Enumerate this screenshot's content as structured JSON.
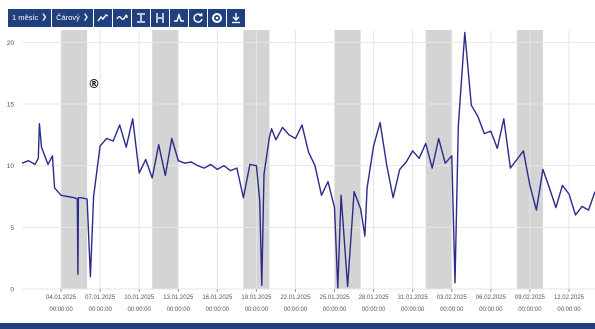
{
  "toolbar": {
    "range_label": "1 měsíc",
    "type_label": "Čárový",
    "icons": [
      "trend-line-icon",
      "wave-icon",
      "align-icon",
      "spread-icon",
      "peak-icon",
      "refresh-icon",
      "settings-icon",
      "download-icon"
    ]
  },
  "colors": {
    "toolbar_bg": "#1f3f7d",
    "series": "#2b2b8c",
    "band": "#d4d4d4",
    "grid": "#e6e6e6"
  },
  "chart_data": {
    "type": "line",
    "ylim": [
      0,
      21
    ],
    "yticks": [
      0,
      5,
      10,
      15,
      20
    ],
    "xlim": [
      "2025-01-01",
      "2025-02-14"
    ],
    "grid": true,
    "xticks": [
      {
        "date": "2025-01-04",
        "label": "04.01.2025",
        "time": "00:00:00"
      },
      {
        "date": "2025-01-07",
        "label": "07.01.2025",
        "time": "00:00:00"
      },
      {
        "date": "2025-01-10",
        "label": "10.01.2025",
        "time": "00:00:00"
      },
      {
        "date": "2025-01-13",
        "label": "13.01.2025",
        "time": "00:00:00"
      },
      {
        "date": "2025-01-16",
        "label": "16.01.2025",
        "time": "00:00:00"
      },
      {
        "date": "2025-01-19",
        "label": "19.01.2025",
        "time": "00:00:00"
      },
      {
        "date": "2025-01-22",
        "label": "22.01.2025",
        "time": "00:00:00"
      },
      {
        "date": "2025-01-25",
        "label": "25.01.2025",
        "time": "00:00:00"
      },
      {
        "date": "2025-01-28",
        "label": "28.01.2025",
        "time": "00:00:00"
      },
      {
        "date": "2025-01-31",
        "label": "31.01.2025",
        "time": "00:00:00"
      },
      {
        "date": "2025-02-03",
        "label": "03.02.2025",
        "time": "00:00:00"
      },
      {
        "date": "2025-02-06",
        "label": "06.02.2025",
        "time": "00:00:00"
      },
      {
        "date": "2025-02-09",
        "label": "09.02.2025",
        "time": "00:00:00"
      },
      {
        "date": "2025-02-12",
        "label": "12.02.2025",
        "time": "00:00:00"
      }
    ],
    "weekend_bands": [
      [
        "2025-01-04",
        "2025-01-06"
      ],
      [
        "2025-01-11",
        "2025-01-13"
      ],
      [
        "2025-01-18",
        "2025-01-20"
      ],
      [
        "2025-01-25",
        "2025-01-27"
      ],
      [
        "2025-02-01",
        "2025-02-03"
      ],
      [
        "2025-02-08",
        "2025-02-10"
      ]
    ],
    "series": [
      {
        "x": [
          "2025-01-01 00:00",
          "2025-01-01 12:00",
          "2025-01-02 00:00",
          "2025-01-02 06:00",
          "2025-01-02 08:00",
          "2025-01-02 12:00",
          "2025-01-03 00:00",
          "2025-01-03 08:00",
          "2025-01-03 12:00",
          "2025-01-04 00:00",
          "2025-01-04 12:00",
          "2025-01-05 00:00",
          "2025-01-05 06:00",
          "2025-01-05 07:00",
          "2025-01-05 08:00",
          "2025-01-05 12:00",
          "2025-01-06 00:00",
          "2025-01-06 06:00",
          "2025-01-06 12:00",
          "2025-01-07 00:00",
          "2025-01-07 12:00",
          "2025-01-08 00:00",
          "2025-01-08 12:00",
          "2025-01-09 00:00",
          "2025-01-09 12:00",
          "2025-01-10 00:00",
          "2025-01-10 12:00",
          "2025-01-11 00:00",
          "2025-01-11 12:00",
          "2025-01-12 00:00",
          "2025-01-12 12:00",
          "2025-01-13 00:00",
          "2025-01-13 12:00",
          "2025-01-14 00:00",
          "2025-01-14 12:00",
          "2025-01-15 00:00",
          "2025-01-15 12:00",
          "2025-01-16 00:00",
          "2025-01-16 12:00",
          "2025-01-17 00:00",
          "2025-01-17 12:00",
          "2025-01-18 00:00",
          "2025-01-18 12:00",
          "2025-01-19 00:00",
          "2025-01-19 06:00",
          "2025-01-19 10:00",
          "2025-01-19 14:00",
          "2025-01-20 00:00",
          "2025-01-20 04:00",
          "2025-01-20 12:00",
          "2025-01-21 00:00",
          "2025-01-21 12:00",
          "2025-01-22 00:00",
          "2025-01-22 12:00",
          "2025-01-23 00:00",
          "2025-01-23 12:00",
          "2025-01-24 00:00",
          "2025-01-24 12:00",
          "2025-01-25 00:00",
          "2025-01-25 06:00",
          "2025-01-25 12:00",
          "2025-01-26 00:00",
          "2025-01-26 12:00",
          "2025-01-27 00:00",
          "2025-01-27 08:00",
          "2025-01-27 12:00",
          "2025-01-28 00:00",
          "2025-01-28 12:00",
          "2025-01-29 00:00",
          "2025-01-29 12:00",
          "2025-01-30 00:00",
          "2025-01-30 12:00",
          "2025-01-31 00:00",
          "2025-01-31 12:00",
          "2025-02-01 00:00",
          "2025-02-01 12:00",
          "2025-02-02 00:00",
          "2025-02-02 12:00",
          "2025-02-03 00:00",
          "2025-02-03 06:00",
          "2025-02-03 12:00",
          "2025-02-04 00:00",
          "2025-02-04 12:00",
          "2025-02-05 00:00",
          "2025-02-05 12:00",
          "2025-02-06 00:00",
          "2025-02-06 12:00",
          "2025-02-07 00:00",
          "2025-02-07 12:00",
          "2025-02-08 00:00",
          "2025-02-08 12:00",
          "2025-02-09 00:00",
          "2025-02-09 12:00",
          "2025-02-10 00:00",
          "2025-02-10 12:00",
          "2025-02-11 00:00",
          "2025-02-11 12:00",
          "2025-02-12 00:00",
          "2025-02-12 12:00",
          "2025-02-13 00:00",
          "2025-02-13 12:00",
          "2025-02-14 00:00"
        ],
        "y": [
          10.2,
          10.4,
          10.1,
          10.6,
          13.4,
          11.5,
          10.1,
          10.8,
          8.2,
          7.6,
          7.5,
          7.4,
          7.3,
          1.2,
          7.4,
          7.4,
          7.3,
          1.0,
          7.5,
          11.6,
          12.2,
          12.0,
          13.3,
          11.5,
          13.8,
          9.4,
          10.5,
          9.0,
          11.7,
          9.2,
          12.2,
          10.4,
          10.2,
          10.3,
          10.0,
          9.8,
          10.1,
          9.7,
          10.0,
          9.6,
          9.8,
          7.4,
          10.1,
          10.0,
          7.2,
          0.3,
          9.3,
          12.3,
          13.0,
          12.1,
          13.1,
          12.5,
          12.2,
          13.3,
          11.1,
          10.0,
          7.6,
          8.7,
          6.6,
          0.1,
          7.6,
          0.2,
          7.9,
          6.5,
          4.3,
          8.2,
          11.6,
          13.5,
          10.1,
          7.4,
          9.7,
          10.3,
          11.2,
          10.6,
          11.8,
          9.8,
          12.2,
          10.2,
          10.8,
          0.5,
          13.2,
          20.8,
          14.9,
          14.0,
          12.6,
          12.8,
          11.4,
          13.8,
          9.8,
          10.5,
          11.2,
          8.4,
          6.4,
          9.7,
          8.2,
          6.6,
          8.4,
          7.7,
          6.0,
          6.7,
          6.4,
          7.9
        ]
      }
    ]
  }
}
